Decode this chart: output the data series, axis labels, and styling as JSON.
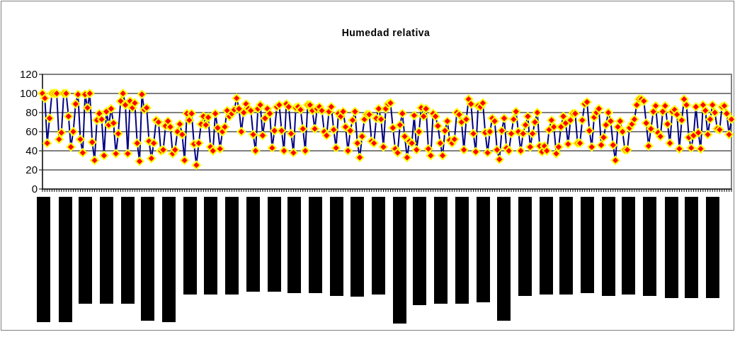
{
  "chart_data": {
    "type": "line",
    "title": "Humedad relativa",
    "categories": [
      null,
      null,
      null,
      null,
      null,
      null,
      null,
      null,
      null,
      null,
      null,
      null,
      null,
      null,
      null,
      null,
      null,
      null,
      null,
      null,
      null,
      null,
      null,
      null,
      null,
      null,
      null,
      null,
      null,
      null,
      null,
      null,
      null,
      null,
      null,
      null,
      null,
      null,
      null,
      null,
      null,
      null,
      null,
      null,
      null,
      null,
      null,
      null,
      null,
      null,
      null,
      null,
      null,
      null,
      null,
      null,
      null,
      null,
      null,
      null,
      null,
      null,
      null,
      null,
      null,
      null,
      null,
      null,
      null,
      null,
      null,
      null,
      null,
      null,
      null,
      null,
      null,
      null,
      null,
      null,
      null,
      null,
      null,
      null,
      null,
      null,
      null,
      null,
      null,
      null,
      null,
      null,
      null,
      null,
      null,
      null,
      null,
      null,
      null,
      null,
      null,
      null,
      null,
      null,
      null,
      null,
      null,
      null,
      null,
      null,
      null,
      null,
      null,
      null,
      null,
      null,
      null,
      null,
      null,
      null,
      null,
      null,
      null,
      null,
      null,
      null,
      null,
      null,
      null,
      null,
      null,
      null,
      null,
      null,
      null,
      null,
      null,
      null,
      null,
      null,
      null,
      null,
      null,
      null,
      null,
      null,
      null,
      null,
      null,
      null,
      null,
      null,
      null,
      null,
      null,
      null,
      null,
      null,
      null,
      null,
      null,
      null,
      null,
      null,
      null,
      null,
      null,
      null,
      null,
      null,
      null,
      null,
      null,
      null,
      null,
      null,
      null,
      null,
      null,
      null,
      null,
      null,
      null,
      null,
      null,
      null,
      null,
      null,
      null,
      null,
      null,
      null,
      null,
      null,
      null,
      null,
      null,
      null,
      null,
      null,
      null,
      null,
      null,
      null,
      null,
      null,
      null,
      null,
      null,
      null,
      null,
      null,
      null,
      null,
      null,
      null,
      null,
      null,
      null,
      null,
      null,
      null,
      null,
      null,
      null,
      null,
      null,
      null,
      null,
      null,
      null,
      null,
      null,
      null,
      null,
      null,
      null,
      null,
      null,
      null,
      null,
      null,
      null,
      null,
      null,
      null,
      null,
      null,
      null,
      null,
      null,
      null,
      null,
      null,
      null,
      null,
      null,
      null,
      null,
      null,
      null,
      null,
      null,
      null,
      null,
      null,
      null,
      null,
      null,
      null,
      null,
      null,
      null,
      null,
      null,
      null,
      null,
      null,
      null,
      null,
      null,
      null,
      null,
      null,
      null,
      null,
      null,
      null,
      null,
      null,
      null,
      null
    ],
    "series": [
      {
        "color": "#000080",
        "values": [
          100,
          95,
          48,
          74,
          100,
          100,
          100,
          52,
          59,
          100,
          100,
          76,
          44,
          60,
          89,
          99,
          52,
          38,
          99,
          85,
          100,
          49,
          30,
          72,
          79,
          73,
          35,
          81,
          67,
          84,
          69,
          37,
          58,
          92,
          100,
          88,
          37,
          92,
          85,
          90,
          48,
          29,
          99,
          83,
          85,
          50,
          32,
          48,
          72,
          70,
          40,
          41,
          66,
          71,
          65,
          37,
          41,
          60,
          68,
          57,
          30,
          79,
          72,
          79,
          47,
          25,
          48,
          68,
          76,
          67,
          75,
          44,
          40,
          79,
          64,
          42,
          60,
          65,
          82,
          76,
          79,
          83,
          95,
          84,
          60,
          80,
          89,
          84,
          82,
          57,
          40,
          84,
          88,
          56,
          74,
          84,
          79,
          43,
          61,
          86,
          88,
          61,
          40,
          89,
          86,
          58,
          38,
          85,
          86,
          83,
          63,
          40,
          88,
          88,
          82,
          63,
          84,
          86,
          82,
          60,
          56,
          81,
          86,
          62,
          43,
          79,
          76,
          81,
          65,
          40,
          61,
          72,
          81,
          48,
          33,
          55,
          73,
          78,
          78,
          50,
          48,
          74,
          84,
          73,
          44,
          84,
          89,
          90,
          64,
          42,
          38,
          67,
          79,
          55,
          33,
          50,
          48,
          77,
          41,
          60,
          85,
          76,
          84,
          42,
          35,
          79,
          76,
          66,
          48,
          35,
          61,
          71,
          51,
          48,
          52,
          80,
          78,
          70,
          41,
          73,
          94,
          89,
          58,
          39,
          87,
          86,
          90,
          59,
          38,
          60,
          74,
          71,
          41,
          31,
          61,
          74,
          43,
          40,
          58,
          73,
          81,
          60,
          40,
          58,
          67,
          76,
          44,
          58,
          70,
          80,
          45,
          39,
          45,
          40,
          62,
          72,
          65,
          37,
          44,
          65,
          76,
          69,
          47,
          72,
          79,
          79,
          48,
          48,
          72,
          89,
          91,
          61,
          44,
          75,
          80,
          84,
          46,
          54,
          67,
          80,
          71,
          46,
          30,
          65,
          71,
          60,
          41,
          41,
          64,
          68,
          73,
          88,
          94,
          94,
          92,
          69,
          45,
          63,
          81,
          87,
          59,
          55,
          81,
          87,
          68,
          48,
          81,
          83,
          78,
          42,
          72,
          94,
          88,
          54,
          43,
          56,
          86,
          59,
          42,
          88,
          82,
          57,
          73,
          88,
          80,
          63,
          62,
          86,
          87,
          79,
          57,
          73
        ]
      }
    ],
    "ylim": [
      0,
      120
    ],
    "yticks": [
      0,
      20,
      40,
      60,
      80,
      100,
      120
    ],
    "grid": "y",
    "marker": "diamond",
    "line_style": "solid",
    "legend": false
  }
}
